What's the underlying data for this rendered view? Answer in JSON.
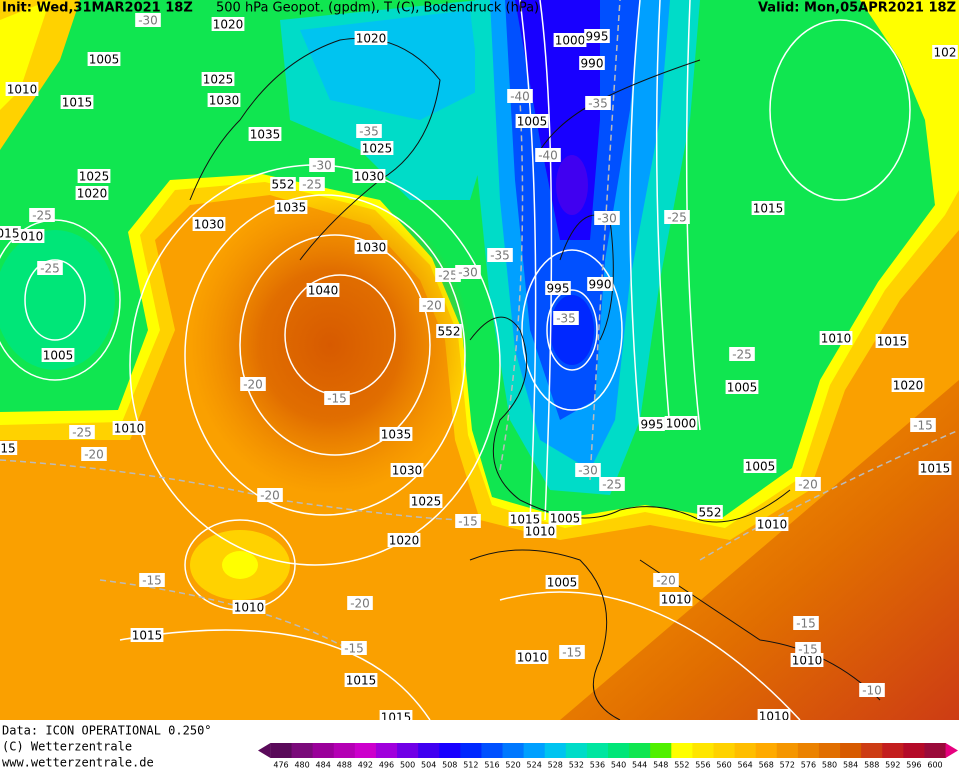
{
  "header": {
    "init": "Init: Wed,31MAR2021 18Z",
    "title": "500 hPa Geopot. (gpdm), T (C), Bodendruck (hPa)",
    "valid": "Valid: Mon,05APR2021 18Z"
  },
  "footer": {
    "data": "Data: ICON OPERATIONAL 0.250°",
    "copyright": "(C) Wetterzentrale",
    "url": "www.wetterzentrale.de"
  },
  "colorbar": {
    "levels": [
      476,
      480,
      484,
      488,
      492,
      496,
      500,
      504,
      508,
      512,
      516,
      520,
      524,
      528,
      532,
      536,
      540,
      544,
      548,
      552,
      556,
      560,
      564,
      568,
      572,
      576,
      580,
      584,
      588,
      592,
      596,
      600
    ],
    "colors": [
      "#5a0a5a",
      "#7a0a7a",
      "#9a009a",
      "#b400b4",
      "#cc00cc",
      "#a000dc",
      "#7000e6",
      "#4000f0",
      "#1800ff",
      "#0028ff",
      "#0050ff",
      "#0078ff",
      "#00a0ff",
      "#00c4f0",
      "#00dcc8",
      "#00e6a0",
      "#00e678",
      "#10e650",
      "#50f000",
      "#ffff00",
      "#ffe600",
      "#ffd200",
      "#ffbe00",
      "#ffaa00",
      "#f59600",
      "#eb8200",
      "#e16e00",
      "#d75a00",
      "#cd3c14",
      "#c31e1e",
      "#b40a28",
      "#9a0a3a"
    ]
  },
  "map": {
    "pressure_labels": [
      "1020",
      "1020",
      "1005",
      "1010",
      "1015",
      "1025",
      "1030",
      "1035",
      "1025",
      "1030",
      "1025",
      "1020",
      "1035",
      "1030",
      "1030",
      "1040",
      "1005",
      "1010",
      "1035",
      "1030",
      "1025",
      "1020",
      "1015",
      "1005",
      "1010",
      "1000",
      "995",
      "990",
      "1005",
      "995",
      "990",
      "995",
      "1000",
      "1005",
      "1005",
      "1010",
      "1015",
      "1010",
      "1015",
      "1020",
      "1015",
      "1005",
      "1010",
      "1010",
      "1015",
      "1010",
      "1010",
      "1015",
      "1010",
      "1015",
      "102",
      "15",
      "1010",
      "015"
    ],
    "temperature_labels": [
      "-30",
      "-40",
      "-35",
      "-35",
      "-30",
      "-25",
      "-40",
      "-30",
      "-25",
      "-25",
      "-25",
      "-25",
      "-30",
      "-35",
      "-20",
      "-35",
      "-20",
      "-15",
      "-25",
      "-20",
      "-25",
      "-15",
      "-20",
      "-15",
      "-30",
      "-25",
      "-20",
      "-15",
      "-20",
      "-20",
      "-15",
      "-15",
      "-15",
      "-15",
      "-10"
    ],
    "height_labels": [
      "552",
      "552",
      "552"
    ]
  }
}
